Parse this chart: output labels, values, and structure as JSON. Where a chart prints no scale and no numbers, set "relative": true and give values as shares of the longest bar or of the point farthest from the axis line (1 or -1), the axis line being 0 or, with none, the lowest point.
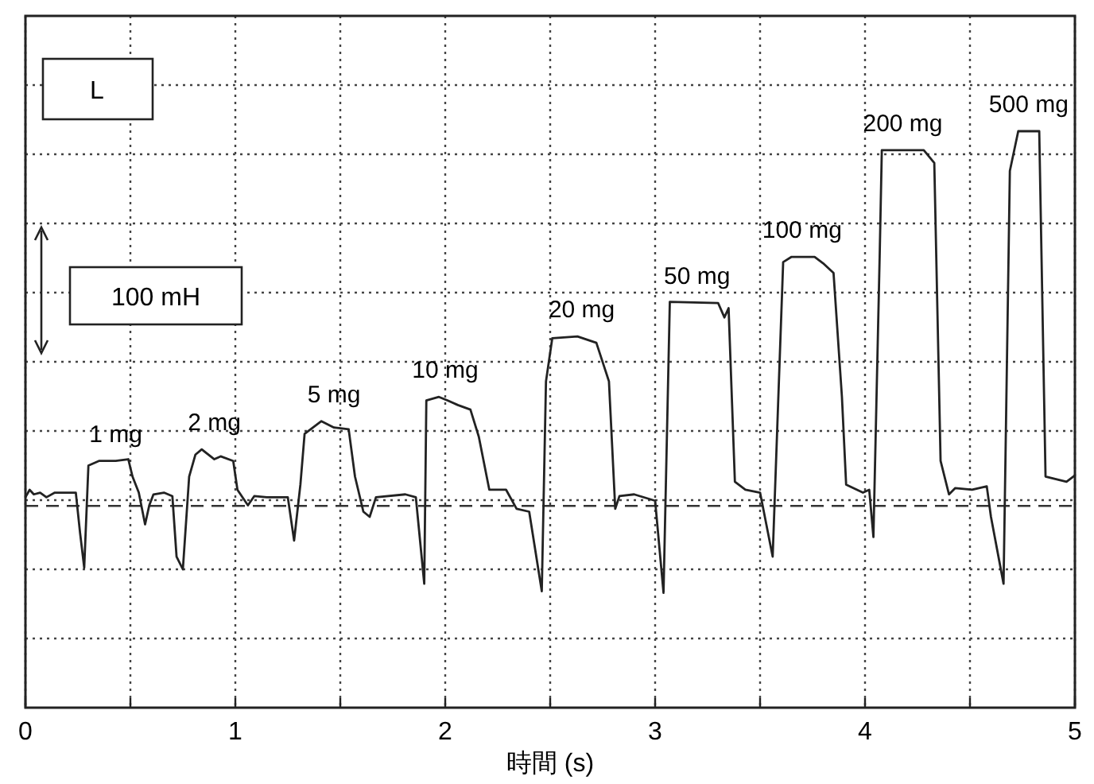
{
  "chart_data": {
    "type": "line",
    "relative": true,
    "xlabel": "時間 (s)",
    "xlim": [
      0,
      5
    ],
    "xticks": [
      0,
      {
        "value": 0.5,
        "label": null
      },
      1,
      {
        "value": 1.5,
        "label": null
      },
      2,
      {
        "value": 2.5,
        "label": null
      },
      3,
      {
        "value": 3.5,
        "label": null
      },
      4,
      {
        "value": 4.5,
        "label": null
      },
      5
    ],
    "grid": true,
    "line_style": "solid",
    "ref_lines": [
      {
        "axis": "y",
        "value": 0.35,
        "label": null,
        "line_style": "dashed",
        "color": "#333333"
      }
    ],
    "series": [
      {
        "color": "#222222",
        "x": [
          0,
          0.02,
          0.04,
          0.07,
          0.1,
          0.14,
          0.24,
          0.26,
          0.28,
          0.3,
          0.35,
          0.43,
          0.49,
          0.51,
          0.54,
          0.57,
          0.59,
          0.61,
          0.66,
          0.7,
          0.72,
          0.75,
          0.78,
          0.81,
          0.84,
          0.9,
          0.93,
          0.99,
          1.01,
          1.06,
          1.09,
          1.15,
          1.25,
          1.28,
          1.31,
          1.33,
          1.41,
          1.47,
          1.54,
          1.57,
          1.61,
          1.64,
          1.67,
          1.81,
          1.86,
          1.9,
          1.91,
          1.97,
          2.01,
          2.06,
          2.12,
          2.16,
          2.21,
          2.29,
          2.34,
          2.4,
          2.46,
          2.48,
          2.51,
          2.63,
          2.72,
          2.78,
          2.81,
          2.83,
          2.9,
          3.0,
          3.04,
          3.07,
          3.3,
          3.33,
          3.35,
          3.38,
          3.43,
          3.5,
          3.56,
          3.61,
          3.65,
          3.76,
          3.8,
          3.85,
          3.89,
          3.91,
          3.99,
          4.02,
          4.04,
          4.07,
          4.08,
          4.28,
          4.33,
          4.36,
          4.4,
          4.43,
          4.51,
          4.58,
          4.6,
          4.66,
          4.69,
          4.73,
          4.83,
          4.86,
          4.96,
          5.0
        ],
        "values": [
          0.365,
          0.378,
          0.37,
          0.373,
          0.365,
          0.373,
          0.373,
          0.304,
          0.243,
          0.42,
          0.428,
          0.428,
          0.431,
          0.401,
          0.373,
          0.318,
          0.351,
          0.37,
          0.373,
          0.367,
          0.262,
          0.24,
          0.401,
          0.439,
          0.448,
          0.431,
          0.436,
          0.428,
          0.378,
          0.351,
          0.367,
          0.365,
          0.365,
          0.29,
          0.387,
          0.475,
          0.497,
          0.486,
          0.483,
          0.401,
          0.34,
          0.331,
          0.365,
          0.37,
          0.365,
          0.215,
          0.533,
          0.539,
          0.533,
          0.525,
          0.517,
          0.47,
          0.378,
          0.378,
          0.345,
          0.34,
          0.202,
          0.566,
          0.641,
          0.644,
          0.633,
          0.566,
          0.345,
          0.367,
          0.37,
          0.359,
          0.199,
          0.704,
          0.702,
          0.677,
          0.693,
          0.392,
          0.378,
          0.373,
          0.262,
          0.773,
          0.782,
          0.782,
          0.771,
          0.754,
          0.539,
          0.387,
          0.373,
          0.378,
          0.296,
          0.787,
          0.967,
          0.967,
          0.945,
          0.428,
          0.37,
          0.381,
          0.378,
          0.384,
          0.331,
          0.215,
          0.931,
          1.0,
          1.0,
          0.401,
          0.392,
          0.403
        ]
      }
    ],
    "annotations": [
      "L",
      "100 mH",
      {
        "text": "1 mg",
        "x": 0.43,
        "y": 0.428
      },
      {
        "text": "2 mg",
        "x": 0.9,
        "y": 0.448
      },
      {
        "text": "5 mg",
        "x": 1.47,
        "y": 0.497
      },
      {
        "text": "10 mg",
        "x": 2.0,
        "y": 0.539
      },
      {
        "text": "20 mg",
        "x": 2.65,
        "y": 0.644
      },
      {
        "text": "50 mg",
        "x": 3.2,
        "y": 0.702
      },
      {
        "text": "100 mg",
        "x": 3.7,
        "y": 0.782
      },
      {
        "text": "200 mg",
        "x": 4.18,
        "y": 0.967
      },
      {
        "text": "500 mg",
        "x": 4.78,
        "y": 1.0
      }
    ]
  }
}
